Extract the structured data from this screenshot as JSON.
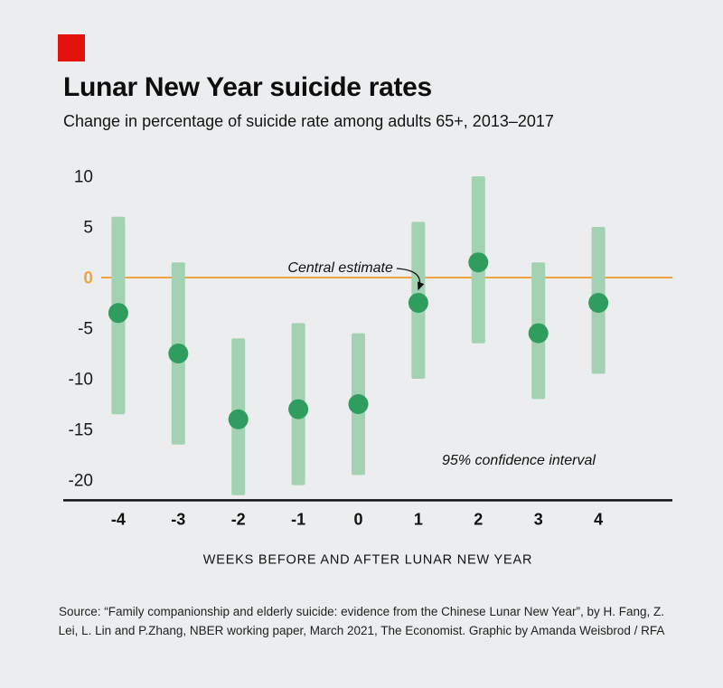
{
  "brand": {
    "accent_color": "#e3120b"
  },
  "header": {
    "title": "Lunar New Year suicide rates",
    "subtitle": "Change in percentage of suicide rate among adults 65+, 2013–2017"
  },
  "chart_data": {
    "type": "range-dot",
    "title": "Lunar New Year suicide rates",
    "subtitle": "Change in percentage of suicide rate among adults 65+, 2013–2017",
    "x": [
      -4,
      -3,
      -2,
      -1,
      0,
      1,
      2,
      3,
      4
    ],
    "central": [
      -3.5,
      -7.5,
      -14,
      -13,
      -12.5,
      -2.5,
      1.5,
      -5.5,
      -2.5
    ],
    "ci_low": [
      -13.5,
      -16.5,
      -21.5,
      -20.5,
      -19.5,
      -10,
      -6.5,
      -12,
      -9.5
    ],
    "ci_high": [
      6,
      1.5,
      -6,
      -4.5,
      -5.5,
      5.5,
      10,
      1.5,
      5
    ],
    "yticks": [
      10,
      5,
      0,
      -5,
      -10,
      -15,
      -20
    ],
    "ylim": [
      -22,
      11.5
    ],
    "xlabel": "WEEKS BEFORE AND AFTER LUNAR NEW YEAR",
    "annotations": {
      "central_estimate": "Central estimate",
      "confidence": "95% confidence interval"
    },
    "legend_position": "none",
    "grid": false,
    "colors": {
      "bar": "#a2d2b2",
      "dot": "#2e9d5e",
      "zero_line": "#f0a43f",
      "axis": "#111111"
    }
  },
  "footer": {
    "source": "Source: “Family companionship and elderly suicide: evidence from the Chinese Lunar New Year”, by H. Fang, Z. Lei, L. Lin and P.Zhang, NBER working paper, March 2021, The Economist. Graphic by Amanda Weisbrod / RFA"
  }
}
